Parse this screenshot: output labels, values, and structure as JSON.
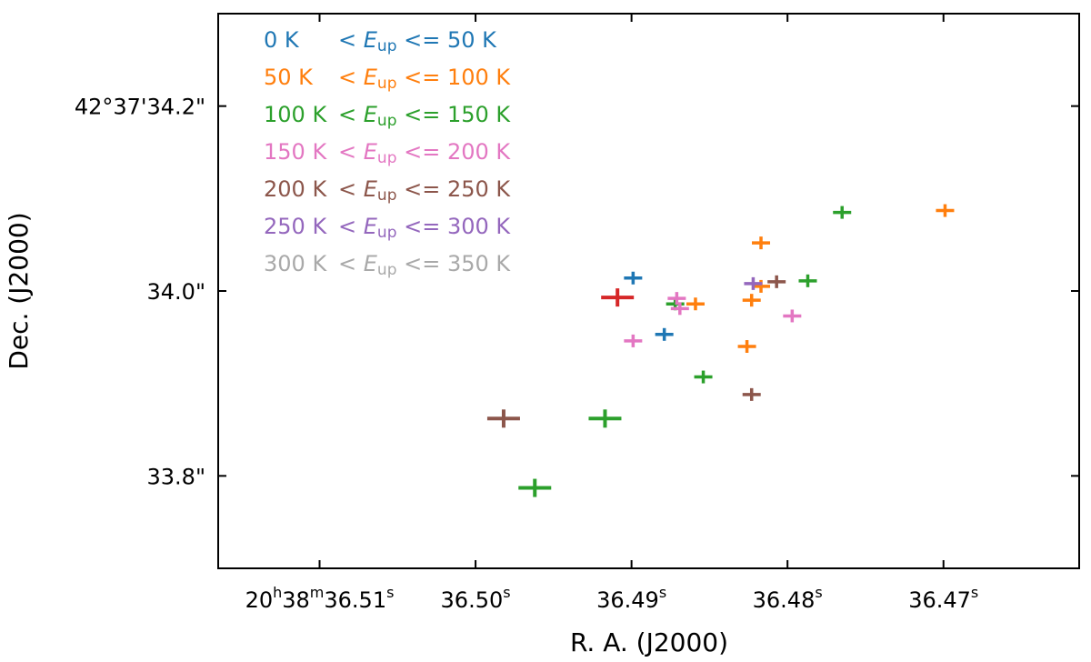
{
  "chart_data": {
    "type": "scatter",
    "xlabel": "R. A. (J2000)",
    "ylabel": "Dec. (J2000)",
    "xlim": [
      36.5165,
      36.4613
    ],
    "ylim": [
      33.7,
      34.3
    ],
    "x_ticks": [
      {
        "value": 36.51,
        "label_main": "20",
        "sup1": "h",
        "mid": "38",
        "sup2": "m",
        "tail": "36.51",
        "sup3": "s"
      },
      {
        "value": 36.5,
        "label_main": "36.50",
        "sup3": "s"
      },
      {
        "value": 36.49,
        "label_main": "36.49",
        "sup3": "s"
      },
      {
        "value": 36.48,
        "label_main": "36.48",
        "sup3": "s"
      },
      {
        "value": 36.47,
        "label_main": "36.47",
        "sup3": "s"
      }
    ],
    "y_ticks": [
      {
        "value": 34.2,
        "label": "42°37'34.2\""
      },
      {
        "value": 34.0,
        "label": "34.0\""
      },
      {
        "value": 33.8,
        "label": "33.8\""
      }
    ],
    "legend": [
      {
        "low": "0 K",
        "lt": "<",
        "sym": "E",
        "sub": "up",
        "le": "<=",
        "high": "50 K",
        "color": "#1f77b4"
      },
      {
        "low": "50 K",
        "lt": "<",
        "sym": "E",
        "sub": "up",
        "le": "<=",
        "high": "100 K",
        "color": "#ff7f0e"
      },
      {
        "low": "100 K",
        "lt": "<",
        "sym": "E",
        "sub": "up",
        "le": "<=",
        "high": "150 K",
        "color": "#2ca02c"
      },
      {
        "low": "150 K",
        "lt": "<",
        "sym": "E",
        "sub": "up",
        "le": "<=",
        "high": "200 K",
        "color": "#e377c2"
      },
      {
        "low": "200 K",
        "lt": "<",
        "sym": "E",
        "sub": "up",
        "le": "<=",
        "high": "250 K",
        "color": "#8c564b"
      },
      {
        "low": "250 K",
        "lt": "<",
        "sym": "E",
        "sub": "up",
        "le": "<=",
        "high": "300 K",
        "color": "#9467bd"
      },
      {
        "low": "300 K",
        "lt": "<",
        "sym": "E",
        "sub": "up",
        "le": "<=",
        "high": "350 K",
        "color": "#a9a9a9"
      }
    ],
    "points": [
      {
        "group": "0-50 K",
        "color": "#1f77b4",
        "ra": 36.4899,
        "dec": 34.014,
        "size": "small"
      },
      {
        "group": "0-50 K",
        "color": "#1f77b4",
        "ra": 36.4879,
        "dec": 33.953,
        "size": "small"
      },
      {
        "group": "50-100 K",
        "color": "#ff7f0e",
        "ra": 36.4699,
        "dec": 34.087,
        "size": "small"
      },
      {
        "group": "50-100 K",
        "color": "#ff7f0e",
        "ra": 36.4817,
        "dec": 34.052,
        "size": "small"
      },
      {
        "group": "50-100 K",
        "color": "#ff7f0e",
        "ra": 36.4817,
        "dec": 34.005,
        "size": "small"
      },
      {
        "group": "50-100 K",
        "color": "#ff7f0e",
        "ra": 36.4823,
        "dec": 33.99,
        "size": "small"
      },
      {
        "group": "50-100 K",
        "color": "#ff7f0e",
        "ra": 36.4859,
        "dec": 33.986,
        "size": "small"
      },
      {
        "group": "50-100 K",
        "color": "#ff7f0e",
        "ra": 36.4826,
        "dec": 33.94,
        "size": "small"
      },
      {
        "group": "100-150 K",
        "color": "#2ca02c",
        "ra": 36.4765,
        "dec": 34.085,
        "size": "small"
      },
      {
        "group": "100-150 K",
        "color": "#2ca02c",
        "ra": 36.4787,
        "dec": 34.011,
        "size": "small"
      },
      {
        "group": "100-150 K",
        "color": "#2ca02c",
        "ra": 36.4872,
        "dec": 33.986,
        "size": "small"
      },
      {
        "group": "100-150 K",
        "color": "#2ca02c",
        "ra": 36.4854,
        "dec": 33.907,
        "size": "small"
      },
      {
        "group": "100-150 K",
        "color": "#2ca02c",
        "ra": 36.4917,
        "dec": 33.862,
        "size": "large"
      },
      {
        "group": "100-150 K",
        "color": "#2ca02c",
        "ra": 36.4962,
        "dec": 33.787,
        "size": "large"
      },
      {
        "group": "150-200 K",
        "color": "#e377c2",
        "ra": 36.4871,
        "dec": 33.992,
        "size": "small"
      },
      {
        "group": "150-200 K",
        "color": "#e377c2",
        "ra": 36.4869,
        "dec": 33.981,
        "size": "small"
      },
      {
        "group": "150-200 K",
        "color": "#e377c2",
        "ra": 36.4899,
        "dec": 33.946,
        "size": "small"
      },
      {
        "group": "150-200 K",
        "color": "#e377c2",
        "ra": 36.4797,
        "dec": 33.973,
        "size": "small"
      },
      {
        "group": "200-250 K",
        "color": "#8c564b",
        "ra": 36.4807,
        "dec": 34.01,
        "size": "small"
      },
      {
        "group": "200-250 K",
        "color": "#8c564b",
        "ra": 36.4823,
        "dec": 33.888,
        "size": "small"
      },
      {
        "group": "200-250 K",
        "color": "#8c564b",
        "ra": 36.4982,
        "dec": 33.862,
        "size": "large"
      },
      {
        "group": "250-300 K",
        "color": "#9467bd",
        "ra": 36.4822,
        "dec": 34.008,
        "size": "small"
      },
      {
        "group": "other",
        "color": "#d62728",
        "ra": 36.4909,
        "dec": 33.993,
        "size": "large"
      }
    ]
  }
}
